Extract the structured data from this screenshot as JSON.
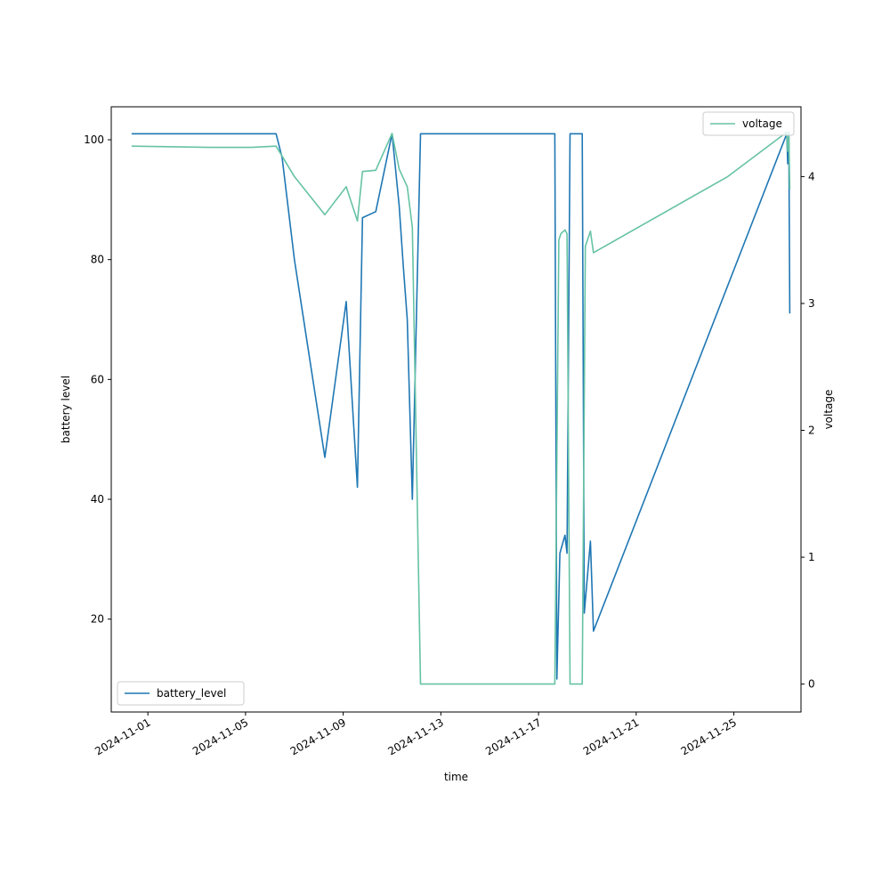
{
  "chart_data": {
    "type": "line",
    "title": "",
    "xlabel": "time",
    "ylabel_left": "battery level",
    "ylabel_right": "voltage",
    "xlim": [
      "2024-10-30T12:00",
      "2024-11-27T18:00"
    ],
    "ylim_left": [
      4.5,
      105.5
    ],
    "ylim_right": [
      -0.22,
      4.55
    ],
    "x_ticks": [
      "2024-11-01",
      "2024-11-05",
      "2024-11-09",
      "2024-11-13",
      "2024-11-17",
      "2024-11-21",
      "2024-11-25"
    ],
    "y_ticks_left": [
      20,
      40,
      60,
      80,
      100
    ],
    "y_ticks_right": [
      0,
      1,
      2,
      3,
      4
    ],
    "grid": false,
    "series": [
      {
        "name": "battery_level",
        "axis": "left",
        "color": "#1f77b4",
        "legend_position": "lower-left",
        "points": [
          [
            "2024-10-31T08:00",
            101
          ],
          [
            "2024-11-06T06:00",
            101
          ],
          [
            "2024-11-06T12:00",
            97
          ],
          [
            "2024-11-07T00:00",
            80
          ],
          [
            "2024-11-08T06:00",
            47
          ],
          [
            "2024-11-09T03:00",
            73
          ],
          [
            "2024-11-09T14:00",
            42
          ],
          [
            "2024-11-09T19:00",
            87
          ],
          [
            "2024-11-10T08:00",
            88
          ],
          [
            "2024-11-11T00:00",
            101
          ],
          [
            "2024-11-11T07:00",
            89
          ],
          [
            "2024-11-11T11:00",
            79
          ],
          [
            "2024-11-11T15:00",
            70
          ],
          [
            "2024-11-11T20:00",
            40
          ],
          [
            "2024-11-12T04:00",
            101
          ],
          [
            "2024-11-17T16:00",
            101
          ],
          [
            "2024-11-17T18:00",
            10
          ],
          [
            "2024-11-17T21:00",
            31
          ],
          [
            "2024-11-18T02:00",
            34
          ],
          [
            "2024-11-18T04:00",
            31
          ],
          [
            "2024-11-18T07:00",
            101
          ],
          [
            "2024-11-18T19:00",
            101
          ],
          [
            "2024-11-18T21:00",
            21
          ],
          [
            "2024-11-19T03:00",
            33
          ],
          [
            "2024-11-19T06:00",
            18
          ],
          [
            "2024-11-27T04:00",
            101
          ],
          [
            "2024-11-27T05:00",
            96
          ],
          [
            "2024-11-27T06:00",
            101
          ],
          [
            "2024-11-27T07:00",
            71
          ]
        ]
      },
      {
        "name": "voltage",
        "axis": "right",
        "color": "#66c2a5",
        "legend_position": "upper-right",
        "points": [
          [
            "2024-10-31T08:00",
            4.24
          ],
          [
            "2024-11-03T12:00",
            4.23
          ],
          [
            "2024-11-05T06:00",
            4.23
          ],
          [
            "2024-11-06T06:00",
            4.24
          ],
          [
            "2024-11-07T00:00",
            4.0
          ],
          [
            "2024-11-08T06:00",
            3.7
          ],
          [
            "2024-11-09T03:00",
            3.92
          ],
          [
            "2024-11-09T14:00",
            3.65
          ],
          [
            "2024-11-09T19:00",
            4.04
          ],
          [
            "2024-11-10T08:00",
            4.05
          ],
          [
            "2024-11-11T00:00",
            4.34
          ],
          [
            "2024-11-11T07:00",
            4.06
          ],
          [
            "2024-11-11T15:00",
            3.92
          ],
          [
            "2024-11-11T20:00",
            3.6
          ],
          [
            "2024-11-12T04:00",
            0.0
          ],
          [
            "2024-11-17T16:00",
            0.0
          ],
          [
            "2024-11-17T20:00",
            3.5
          ],
          [
            "2024-11-17T22:00",
            3.55
          ],
          [
            "2024-11-18T02:00",
            3.58
          ],
          [
            "2024-11-18T04:00",
            3.55
          ],
          [
            "2024-11-18T07:00",
            0.0
          ],
          [
            "2024-11-18T19:00",
            0.0
          ],
          [
            "2024-11-18T22:00",
            3.45
          ],
          [
            "2024-11-19T03:00",
            3.57
          ],
          [
            "2024-11-19T06:00",
            3.4
          ],
          [
            "2024-11-24T18:00",
            4.0
          ],
          [
            "2024-11-27T04:00",
            4.35
          ],
          [
            "2024-11-27T05:00",
            4.2
          ],
          [
            "2024-11-27T06:00",
            4.35
          ],
          [
            "2024-11-27T07:00",
            3.9
          ]
        ]
      }
    ]
  }
}
